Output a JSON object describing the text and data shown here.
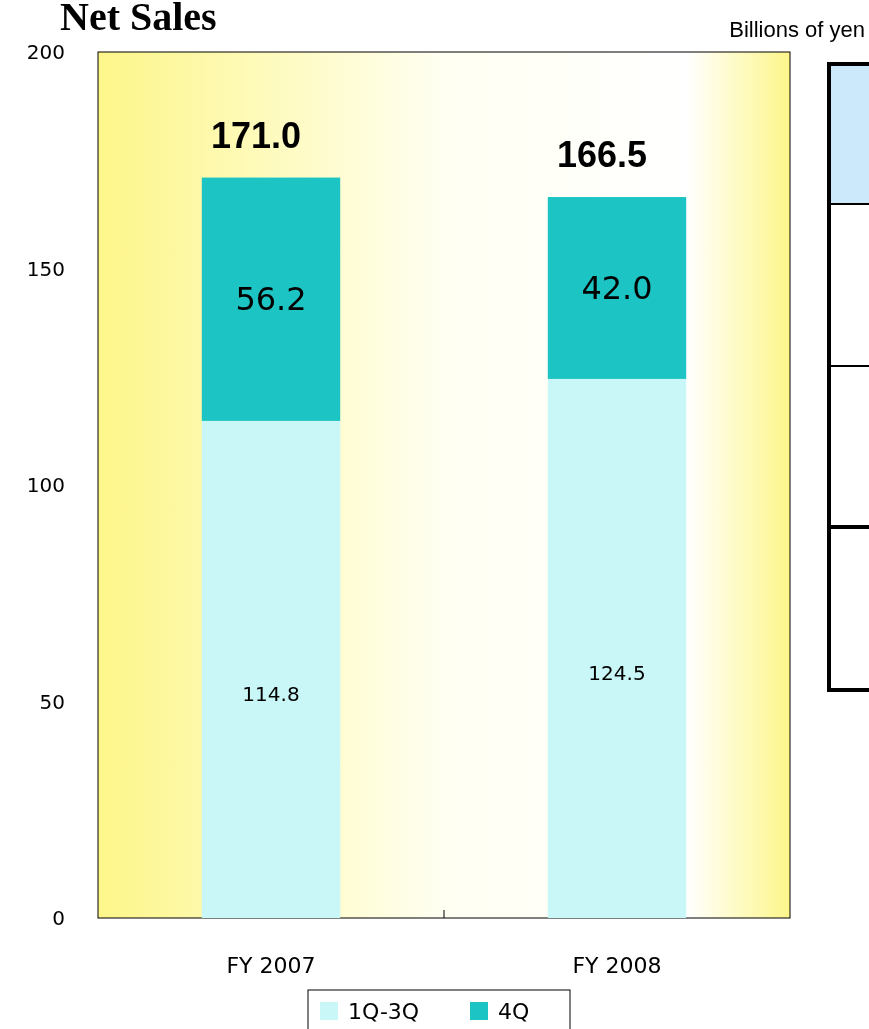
{
  "chart_data": {
    "type": "bar",
    "title": "Net Sales",
    "subtitle": "Billions of yen",
    "categories": [
      "FY 2007",
      "FY 2008"
    ],
    "stacked": true,
    "series": [
      {
        "name": "1Q-3Q",
        "color": "#c9f6f6",
        "values": [
          114.8,
          124.5
        ],
        "value_labels": [
          "114.8",
          "124.5"
        ]
      },
      {
        "name": "4Q",
        "color": "#1cc4c4",
        "values": [
          56.2,
          42.0
        ],
        "value_labels": [
          "56.2",
          "42.0"
        ]
      }
    ],
    "totals": [
      "171.0",
      "166.5"
    ],
    "ylim": [
      0,
      200
    ],
    "yticks": [
      0,
      50,
      100,
      150,
      200
    ],
    "grid": false,
    "legend": "bottom"
  }
}
